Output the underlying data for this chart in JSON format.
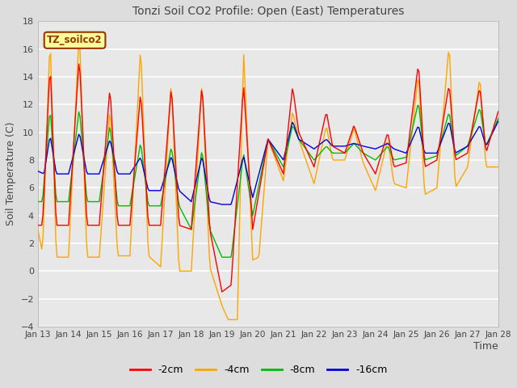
{
  "title": "Tonzi Soil CO2 Profile: Open (East) Temperatures",
  "xlabel": "Time",
  "ylabel": "Soil Temperature (C)",
  "legend_label": "TZ_soilco2",
  "series_labels": [
    "-2cm",
    "-4cm",
    "-8cm",
    "-16cm"
  ],
  "series_colors": [
    "#ff0000",
    "#ffa500",
    "#00bb00",
    "#0000dd"
  ],
  "ylim": [
    -4,
    18
  ],
  "yticks": [
    -4,
    -2,
    0,
    2,
    4,
    6,
    8,
    10,
    12,
    14,
    16,
    18
  ],
  "xtick_labels": [
    "Jan 13",
    "Jan 14",
    "Jan 15",
    "Jan 16",
    "Jan 17",
    "Jan 18",
    "Jan 19",
    "Jan 20",
    "Jan 21",
    "Jan 22",
    "Jan 23",
    "Jan 24",
    "Jan 25",
    "Jan 26",
    "Jan 27",
    "Jan 28"
  ],
  "bg_color": "#dddddd",
  "plot_bg_color": "#e8e8e8",
  "grid_color": "#ffffff",
  "annotation_bg": "#ffff99",
  "annotation_border": "#993300",
  "annotation_text_color": "#993300",
  "title_color": "#444444",
  "label_color": "#444444"
}
